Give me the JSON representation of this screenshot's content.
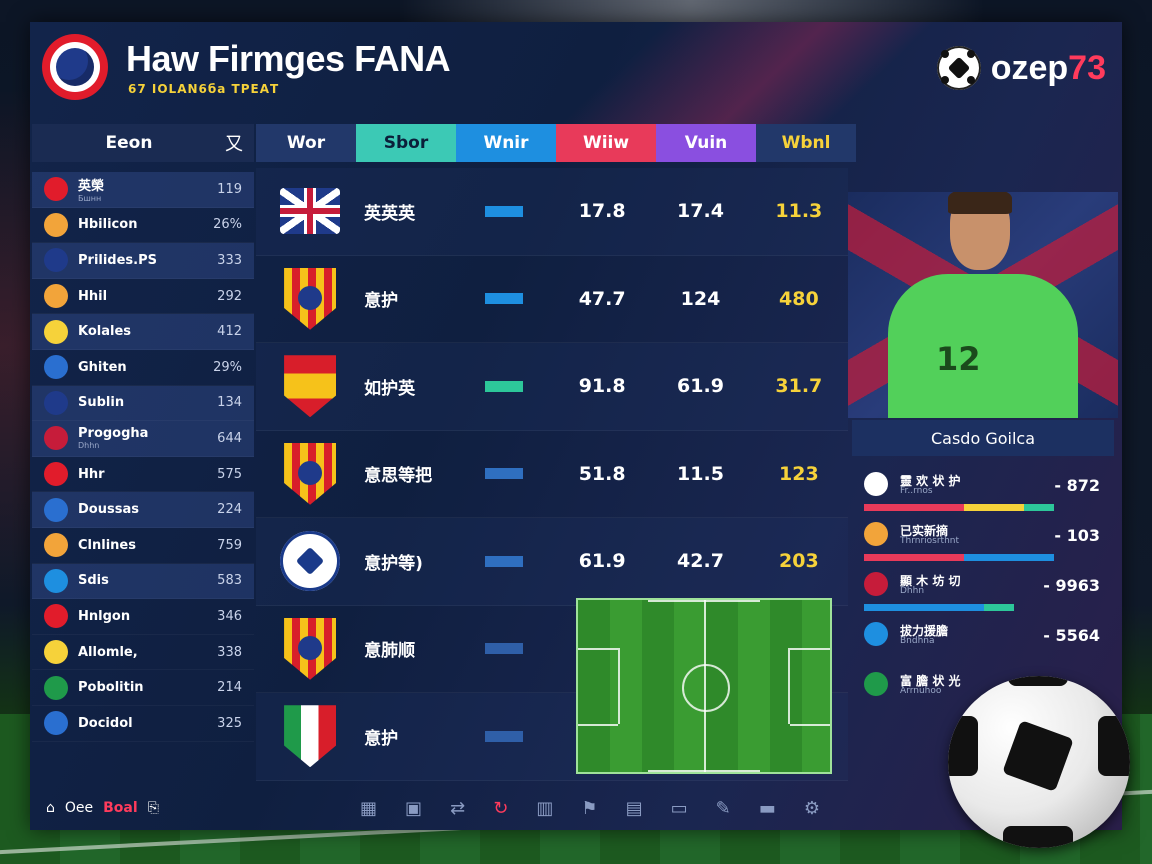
{
  "header": {
    "title": "Haw Firmges FANA",
    "subtitle": "67 IOLAN6ба ТРЕАТ",
    "brand_text": "ozep",
    "brand_number": "73"
  },
  "left_panel": {
    "header_label": "Eeon",
    "close_symbol": "又",
    "teams": [
      {
        "name": "英榮",
        "sub": "Бшнн",
        "value": "119"
      },
      {
        "name": "Hbilicon",
        "value": "26%"
      },
      {
        "name": "Prilides.PS",
        "value": "333"
      },
      {
        "name": "Hhil",
        "value": "292"
      },
      {
        "name": "Kolales",
        "value": "412"
      },
      {
        "name": "Ghiten",
        "value": "29%"
      },
      {
        "name": "Sublin",
        "value": "134"
      },
      {
        "name": "Progogha",
        "sub": "Dhhn",
        "value": "644"
      },
      {
        "name": "Hhr",
        "value": "575"
      },
      {
        "name": "Doussas",
        "value": "224"
      },
      {
        "name": "Clnlines",
        "value": "759"
      },
      {
        "name": "Sdis",
        "value": "583"
      },
      {
        "name": "Hnlgon",
        "value": "346"
      },
      {
        "name": "Allomle,",
        "value": "338"
      },
      {
        "name": "Pobolitin",
        "value": "214"
      },
      {
        "name": "Docidol",
        "value": "325"
      }
    ],
    "footer_text": "Oee",
    "footer_goal": "Boal"
  },
  "table": {
    "tabs": [
      {
        "label": "Wor",
        "bg": "#22386a",
        "fg": "#ffffff"
      },
      {
        "label": "Sbor",
        "bg": "#3cc9b5",
        "fg": "#0b1f3a"
      },
      {
        "label": "Wnir",
        "bg": "#1e8fe0",
        "fg": "#ffffff"
      },
      {
        "label": "Wiiw",
        "bg": "#e83a5a",
        "fg": "#ffffff"
      },
      {
        "label": "Vuin",
        "bg": "#8a4fe0",
        "fg": "#ffffff"
      },
      {
        "label": "Wbnl",
        "bg": "#22386a",
        "fg": "#f6d23a"
      }
    ],
    "rows": [
      {
        "name": "英英英",
        "bar_color": "#1e8fe0",
        "v1": "17.8",
        "v2": "17.4",
        "v3": "11.3"
      },
      {
        "name": "意护",
        "bar_color": "#1e8fe0",
        "v1": "47.7",
        "v2": "124",
        "v3": "480"
      },
      {
        "name": "如护英",
        "bar_color": "#2dc79a",
        "v1": "91.8",
        "v2": "61.9",
        "v3": "31.7"
      },
      {
        "name": "意思等把",
        "bar_color": "#2f6fc0",
        "v1": "51.8",
        "v2": "11.5",
        "v3": "123"
      },
      {
        "name": "意护等)",
        "bar_color": "#2f6fc0",
        "v1": "61.9",
        "v2": "42.7",
        "v3": "203"
      },
      {
        "name": "意肺顺",
        "bar_color": "#2f5fa8",
        "v1": "",
        "v2": "",
        "v3": ""
      },
      {
        "name": "意护",
        "bar_color": "#2f5fa8",
        "v1": "",
        "v2": "",
        "v3": ""
      }
    ]
  },
  "player": {
    "name": "Casdo Goilca",
    "shirt_number": "12"
  },
  "stats": [
    {
      "title": "靈 欢 状 护",
      "sub": "Fr..rnos",
      "value": "- 872"
    },
    {
      "title": "已实新摘",
      "sub": "Thrnriosrthnt",
      "value": "- 103"
    },
    {
      "title": "顯 木 坊 切",
      "sub": "Dhhn",
      "value": "- 9963"
    },
    {
      "title": "拔力援膽",
      "sub": "Bndhna",
      "value": "- 5564"
    },
    {
      "title": "富 膽 状 光",
      "sub": "Arrnuhoo",
      "value": ""
    }
  ]
}
